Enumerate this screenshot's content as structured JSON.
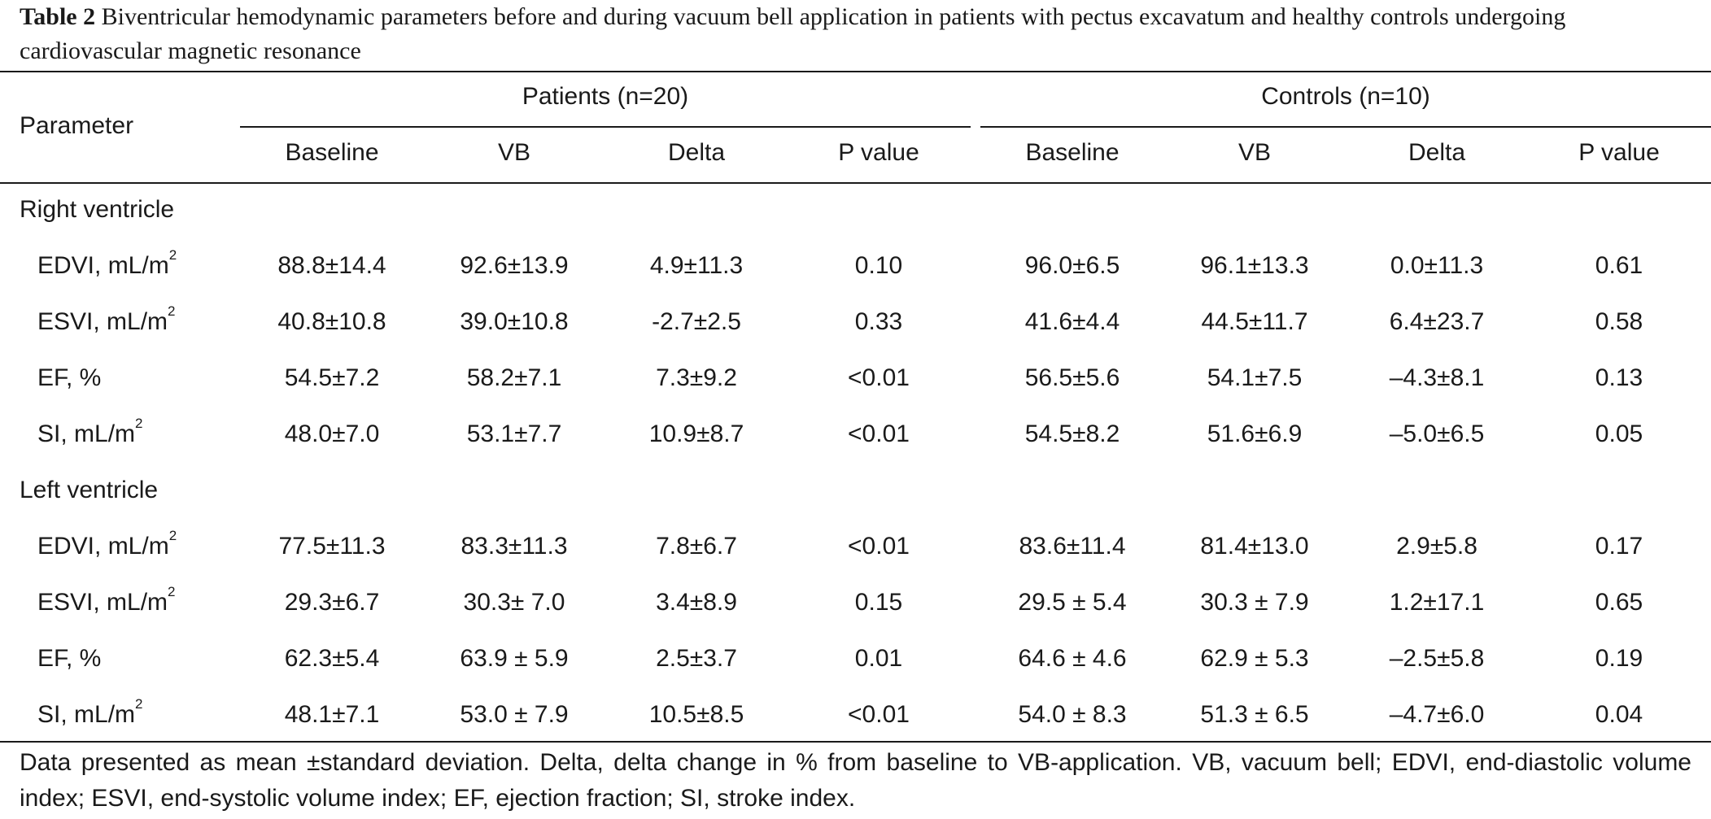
{
  "caption": {
    "label": "Table 2",
    "text": "Biventricular hemodynamic parameters before and during vacuum bell application in patients with pectus excavatum and healthy controls undergoing cardiovascular magnetic resonance"
  },
  "header": {
    "parameter": "Parameter",
    "group_patients": "Patients (n=20)",
    "group_controls": "Controls (n=10)",
    "columns": [
      "Baseline",
      "VB",
      "Delta",
      "P value",
      "Baseline",
      "VB",
      "Delta",
      "P value"
    ]
  },
  "sections": [
    {
      "title": "Right ventricle",
      "rows": [
        {
          "label": "EDVI, mL/m",
          "sup": "2",
          "values": [
            "88.8±14.4",
            "92.6±13.9",
            "4.9±11.3",
            "0.10",
            "96.0±6.5",
            "96.1±13.3",
            "0.0±11.3",
            "0.61"
          ]
        },
        {
          "label": "ESVI, mL/m",
          "sup": "2",
          "values": [
            "40.8±10.8",
            "39.0±10.8",
            "-2.7±2.5",
            "0.33",
            "41.6±4.4",
            "44.5±11.7",
            "6.4±23.7",
            "0.58"
          ]
        },
        {
          "label": "EF, %",
          "sup": "",
          "values": [
            "54.5±7.2",
            "58.2±7.1",
            "7.3±9.2",
            "<0.01",
            "56.5±5.6",
            "54.1±7.5",
            "–4.3±8.1",
            "0.13"
          ]
        },
        {
          "label": "SI, mL/m",
          "sup": "2",
          "values": [
            "48.0±7.0",
            "53.1±7.7",
            "10.9±8.7",
            "<0.01",
            "54.5±8.2",
            "51.6±6.9",
            "–5.0±6.5",
            "0.05"
          ]
        }
      ]
    },
    {
      "title": "Left ventricle",
      "rows": [
        {
          "label": "EDVI, mL/m",
          "sup": "2",
          "values": [
            "77.5±11.3",
            "83.3±11.3",
            "7.8±6.7",
            "<0.01",
            "83.6±11.4",
            "81.4±13.0",
            "2.9±5.8",
            "0.17"
          ]
        },
        {
          "label": "ESVI, mL/m",
          "sup": "2",
          "values": [
            "29.3±6.7",
            "30.3± 7.0",
            "3.4±8.9",
            "0.15",
            "29.5 ± 5.4",
            "30.3 ± 7.9",
            "1.2±17.1",
            "0.65"
          ]
        },
        {
          "label": "EF, %",
          "sup": "",
          "values": [
            "62.3±5.4",
            "63.9 ± 5.9",
            "2.5±3.7",
            "0.01",
            "64.6 ± 4.6",
            "62.9 ± 5.3",
            "–2.5±5.8",
            "0.19"
          ]
        },
        {
          "label": "SI, mL/m",
          "sup": "2",
          "values": [
            "48.1±7.1",
            "53.0 ± 7.9",
            "10.5±8.5",
            "<0.01",
            "54.0 ± 8.3",
            "51.3 ± 6.5",
            "–4.7±6.0",
            "0.04"
          ]
        }
      ]
    }
  ],
  "footnote": "Data presented as mean ±standard deviation.  Delta, delta change in % from baseline to VB-application. VB, vacuum bell; EDVI, end-diastolic volume index; ESVI, end-systolic volume index; EF, ejection fraction; SI, stroke index."
}
